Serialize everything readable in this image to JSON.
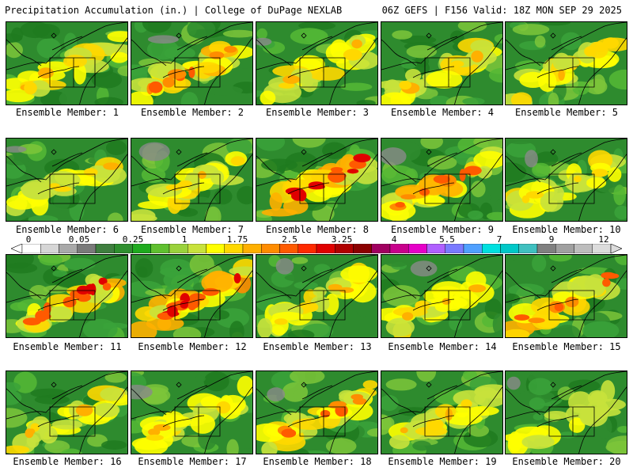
{
  "header": {
    "title": "Precipitation Accumulation (in.) | College of DuPage NEXLAB",
    "run_info": "06Z GEFS | F156 Valid: 18Z MON SEP 29 2025"
  },
  "legend": {
    "tick_labels": [
      "0",
      "0.05",
      "0.25",
      "1",
      "1.75",
      "2.5",
      "3.25",
      "4",
      "5.5",
      "7",
      "9",
      "12"
    ],
    "colors": [
      "#ffffff",
      "#d6d6d6",
      "#a9a9a9",
      "#7a7a7a",
      "#3f7f3f",
      "#2f8f2f",
      "#1faa1f",
      "#60c030",
      "#9ad23c",
      "#c8e23c",
      "#ffff00",
      "#ffd800",
      "#ffb000",
      "#ff8c00",
      "#ff5a00",
      "#ff2a00",
      "#e00000",
      "#b00000",
      "#8b0000",
      "#a00060",
      "#c8008c",
      "#e600c8",
      "#b060ff",
      "#7a7aff",
      "#50a0ff",
      "#00e0e0",
      "#00c8c8",
      "#40c0c0",
      "#808080",
      "#a0a0a0",
      "#bdbdbd",
      "#dcdcdc"
    ]
  },
  "panels": [
    {
      "label": "Ensemble Member: 1",
      "intensity": 1
    },
    {
      "label": "Ensemble Member: 2",
      "intensity": 2
    },
    {
      "label": "Ensemble Member: 3",
      "intensity": 1
    },
    {
      "label": "Ensemble Member: 4",
      "intensity": 1
    },
    {
      "label": "Ensemble Member: 5",
      "intensity": 1
    },
    {
      "label": "Ensemble Member: 6",
      "intensity": 1
    },
    {
      "label": "Ensemble Member: 7",
      "intensity": 1
    },
    {
      "label": "Ensemble Member: 8",
      "intensity": 3
    },
    {
      "label": "Ensemble Member: 9",
      "intensity": 2
    },
    {
      "label": "Ensemble Member: 10",
      "intensity": 1
    },
    {
      "label": "Ensemble Member: 11",
      "intensity": 3
    },
    {
      "label": "Ensemble Member: 12",
      "intensity": 3
    },
    {
      "label": "Ensemble Member: 13",
      "intensity": 1
    },
    {
      "label": "Ensemble Member: 14",
      "intensity": 1
    },
    {
      "label": "Ensemble Member: 15",
      "intensity": 2
    },
    {
      "label": "Ensemble Member: 16",
      "intensity": 1
    },
    {
      "label": "Ensemble Member: 17",
      "intensity": 1
    },
    {
      "label": "Ensemble Member: 18",
      "intensity": 2
    },
    {
      "label": "Ensemble Member: 19",
      "intensity": 1
    },
    {
      "label": "Ensemble Member: 20",
      "intensity": 0
    }
  ]
}
